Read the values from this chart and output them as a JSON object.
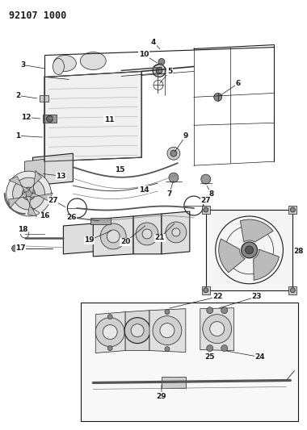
{
  "title_code": "92107 1000",
  "background_color": "#ffffff",
  "line_color": "#1a1a1a",
  "gray_light": "#cccccc",
  "gray_med": "#888888",
  "gray_dark": "#555555",
  "figsize": [
    3.8,
    5.33
  ],
  "dpi": 100,
  "font_size_title": 8.5,
  "font_size_label": 6.5,
  "font_weight": "bold",
  "lw_thin": 0.5,
  "lw_med": 0.8,
  "lw_thick": 1.2
}
